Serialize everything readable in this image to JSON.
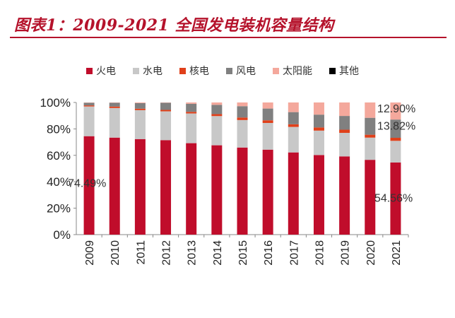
{
  "title": "图表1：2009-2021 全国发电装机容量结构",
  "colors": {
    "thermal": "#c00d2b",
    "hydro": "#c8c8c8",
    "nuclear": "#e0401a",
    "wind": "#808080",
    "solar": "#f4a89c",
    "other": "#000000",
    "title": "#b5122b"
  },
  "chart_data": {
    "type": "bar",
    "stacked": true,
    "categories": [
      "2009",
      "2010",
      "2011",
      "2012",
      "2013",
      "2014",
      "2015",
      "2016",
      "2017",
      "2018",
      "2019",
      "2020",
      "2021"
    ],
    "ylim": [
      0,
      100
    ],
    "yticks": [
      "0%",
      "20%",
      "40%",
      "60%",
      "80%",
      "100%"
    ],
    "legend_position": "top",
    "series": [
      {
        "name": "火电",
        "key": "thermal",
        "values": [
          74.49,
          73.4,
          72.3,
          71.5,
          69.2,
          67.6,
          65.9,
          64.3,
          62.2,
          60.2,
          59.2,
          56.6,
          54.56
        ]
      },
      {
        "name": "水电",
        "key": "hydro",
        "values": [
          22.5,
          22.4,
          21.9,
          21.8,
          22.5,
          22.1,
          20.8,
          20.2,
          19.3,
          18.5,
          17.8,
          16.8,
          16.4
        ]
      },
      {
        "name": "核电",
        "key": "nuclear",
        "values": [
          0.8,
          1.1,
          1.1,
          1.1,
          1.2,
          1.5,
          1.9,
          2.0,
          2.0,
          2.4,
          2.4,
          2.2,
          2.3
        ]
      },
      {
        "name": "风电",
        "key": "wind",
        "values": [
          2.0,
          2.9,
          4.2,
          5.4,
          6.1,
          7.0,
          8.6,
          8.9,
          9.2,
          9.7,
          10.4,
          12.8,
          13.82
        ]
      },
      {
        "name": "太阳能",
        "key": "solar",
        "values": [
          0.2,
          0.2,
          0.5,
          0.2,
          1.0,
          1.8,
          2.8,
          4.6,
          7.3,
          9.2,
          10.2,
          11.6,
          12.9
        ]
      },
      {
        "name": "其他",
        "key": "other",
        "values": [
          0,
          0,
          0,
          0,
          0,
          0,
          0,
          0,
          0,
          0,
          0,
          0,
          0
        ]
      }
    ],
    "annotations": [
      "74.49%",
      "54.56%",
      "13.82%",
      "12.90%"
    ]
  }
}
